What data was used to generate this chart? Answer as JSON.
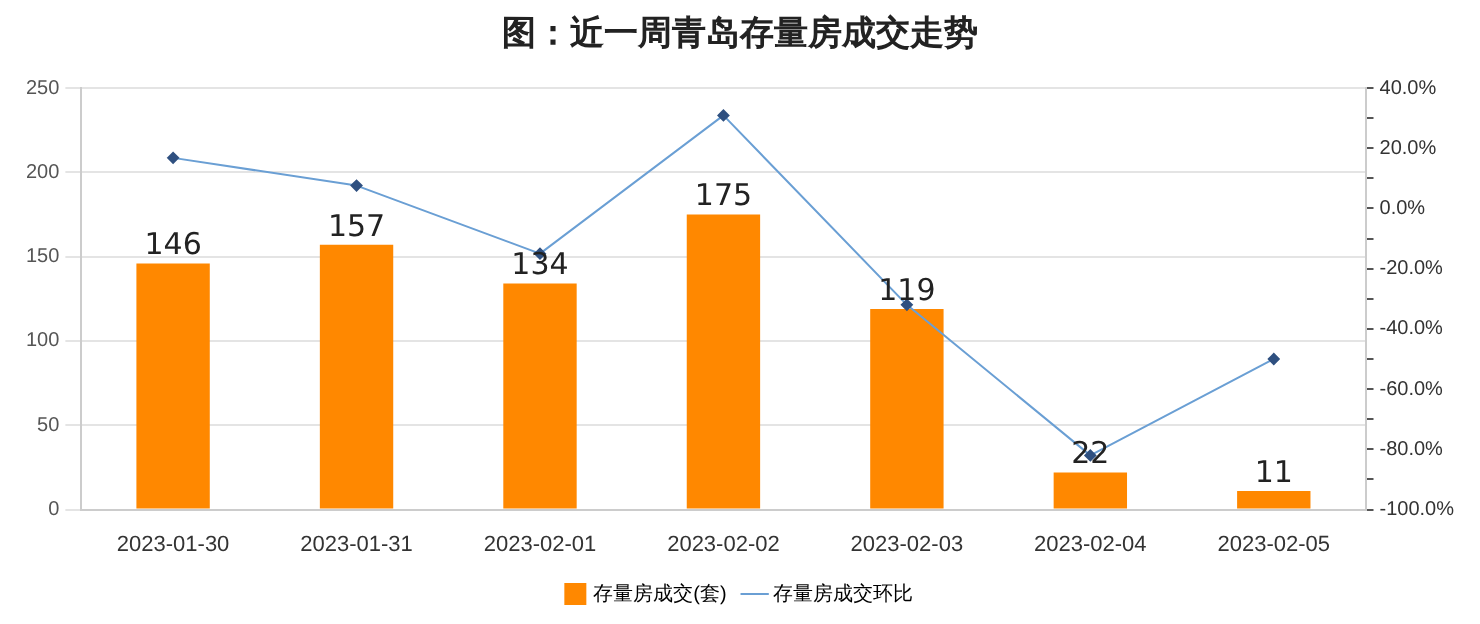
{
  "chart_data": {
    "type": "bar",
    "title": "图：近一周青岛存量房成交走势",
    "categories": [
      "2023-01-30",
      "2023-01-31",
      "2023-02-01",
      "2023-02-02",
      "2023-02-03",
      "2023-02-04",
      "2023-02-05"
    ],
    "series": [
      {
        "name": "存量房成交(套)",
        "color": "#ff8800",
        "values": [
          146,
          157,
          134,
          175,
          119,
          22,
          11
        ],
        "value_labels": [
          "146",
          "157",
          "134",
          "175",
          "119",
          "22",
          "11"
        ]
      },
      {
        "name": "存量房成交环比",
        "type": "line",
        "axis": "y2",
        "color": "#6a9fd4",
        "marker": "diamond",
        "values": [
          16.8,
          7.6,
          -15,
          30.9,
          -32,
          -82,
          -50
        ]
      }
    ],
    "ylim": [
      0,
      250
    ],
    "yticks": [
      0,
      50,
      100,
      150,
      200,
      250
    ],
    "y2lim": [
      -100,
      40
    ],
    "y2ticks": [
      {
        "value": -100,
        "label": "-100.0%"
      },
      {
        "value": -90,
        "label": null
      },
      {
        "value": -80,
        "label": "-80.0%"
      },
      {
        "value": -70,
        "label": null
      },
      {
        "value": -60,
        "label": "-60.0%"
      },
      {
        "value": -50,
        "label": null
      },
      {
        "value": -40,
        "label": "-40.0%"
      },
      {
        "value": -30,
        "label": null
      },
      {
        "value": -20,
        "label": "-20.0%"
      },
      {
        "value": -10,
        "label": null
      },
      {
        "value": 0,
        "label": "0.0%"
      },
      {
        "value": 10,
        "label": null
      },
      {
        "value": 20,
        "label": "20.0%"
      },
      {
        "value": 30,
        "label": null
      },
      {
        "value": 40,
        "label": "40.0%"
      }
    ],
    "grid": "y",
    "legend": "bottom"
  }
}
